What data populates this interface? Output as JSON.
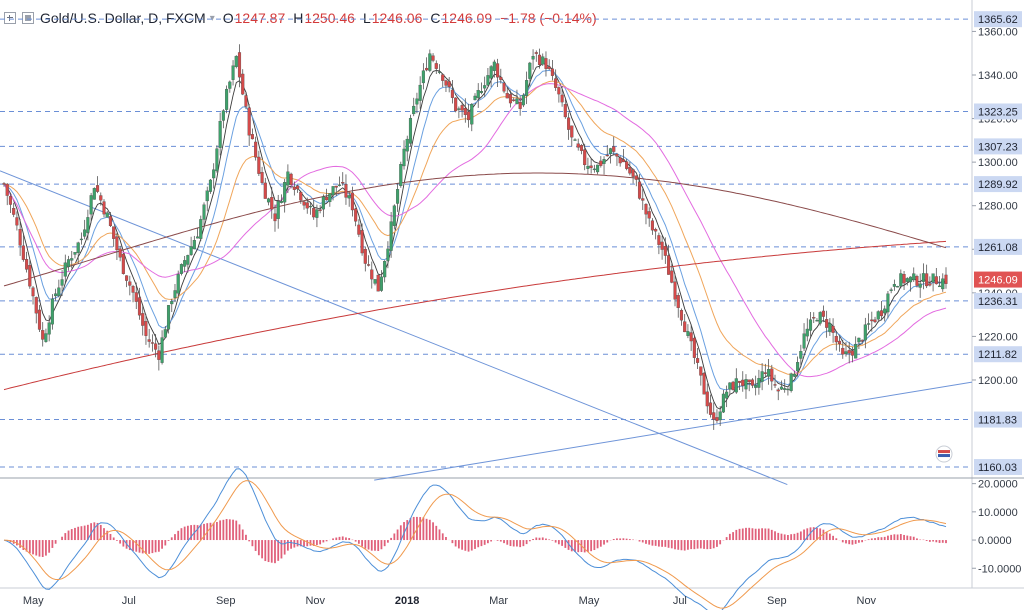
{
  "header": {
    "symbol": "Gold/U.S. Dollar, D, FXCM",
    "open_label": "O",
    "open": "1247.87",
    "high_label": "H",
    "high": "1250.46",
    "low_label": "L",
    "low": "1246.06",
    "close_label": "C",
    "close": "1246.09",
    "change": "−1.78 (−0.14%)"
  },
  "colors": {
    "up_candle": "#3ea16b",
    "down_candle": "#d44a4a",
    "level_line": "#6b8fd6",
    "level_label_bg": "#cbd8f2",
    "price_label_bg": "#e05353",
    "trendline": "#6e94d8",
    "ma_pink": "#e36be0",
    "ma_orange": "#f0a65b",
    "ma_darkred": "#c83a3a",
    "ma_brown": "#8a4a4a",
    "macd_line": "#4d8fd8",
    "signal_line": "#f09a4e",
    "histogram": "#e0607a"
  },
  "chart_data": [
    {
      "type": "line",
      "title": "Gold/U.S. Dollar, D, FXCM",
      "description": "Daily candlestick chart",
      "x_tick_labels": [
        "May",
        "Jul",
        "Sep",
        "Nov",
        "2018",
        "Mar",
        "May",
        "Jul",
        "Sep",
        "Nov"
      ],
      "y_tick_labels": [
        "1200.00",
        "1220.00",
        "1240.00",
        "1260.00",
        "1280.00",
        "1300.00",
        "1320.00",
        "1340.00",
        "1360.00"
      ],
      "ylim": [
        1155,
        1368
      ],
      "last_price": "1246.09",
      "horizontal_levels": [
        "1365.62",
        "1323.25",
        "1307.23",
        "1289.92",
        "1261.08",
        "1236.31",
        "1211.82",
        "1181.83",
        "1160.03"
      ],
      "series": [
        {
          "name": "close",
          "x": [
            0,
            4,
            8,
            12,
            16,
            20,
            24,
            28,
            32,
            36,
            40,
            44,
            48,
            52,
            56,
            60,
            64,
            68,
            72,
            76,
            80,
            84,
            88,
            92,
            96,
            100,
            104,
            108,
            112,
            116,
            120,
            124,
            128,
            132,
            136,
            140,
            144,
            148,
            152,
            156,
            160,
            164,
            168,
            172,
            176,
            180,
            184,
            188,
            192,
            196,
            200,
            204,
            208,
            212,
            216,
            220,
            224,
            228,
            232,
            236,
            240,
            244,
            248,
            252,
            256,
            260,
            264,
            268,
            272,
            276,
            280,
            284,
            288,
            292
          ],
          "values": [
            1290,
            1270,
            1245,
            1218,
            1240,
            1255,
            1265,
            1290,
            1275,
            1255,
            1240,
            1220,
            1212,
            1238,
            1255,
            1268,
            1290,
            1325,
            1348,
            1315,
            1290,
            1275,
            1295,
            1285,
            1275,
            1285,
            1290,
            1280,
            1255,
            1242,
            1270,
            1305,
            1330,
            1350,
            1340,
            1325,
            1320,
            1335,
            1345,
            1330,
            1325,
            1350,
            1345,
            1330,
            1310,
            1300,
            1298,
            1305,
            1300,
            1290,
            1272,
            1260,
            1240,
            1220,
            1200,
            1180,
            1195,
            1200,
            1195,
            1205,
            1195,
            1200,
            1220,
            1230,
            1225,
            1210,
            1215,
            1225,
            1232,
            1246,
            1246,
            1246,
            1246,
            1246
          ]
        },
        {
          "name": "",
          "description": "MACD",
          "ylim": [
            -17,
            22
          ],
          "y_tick_labels": [
            "20.0000",
            "10.0000",
            "0.0000",
            "-10.0000"
          ]
        }
      ]
    }
  ],
  "axis_scale_y": "linear",
  "grid": false
}
